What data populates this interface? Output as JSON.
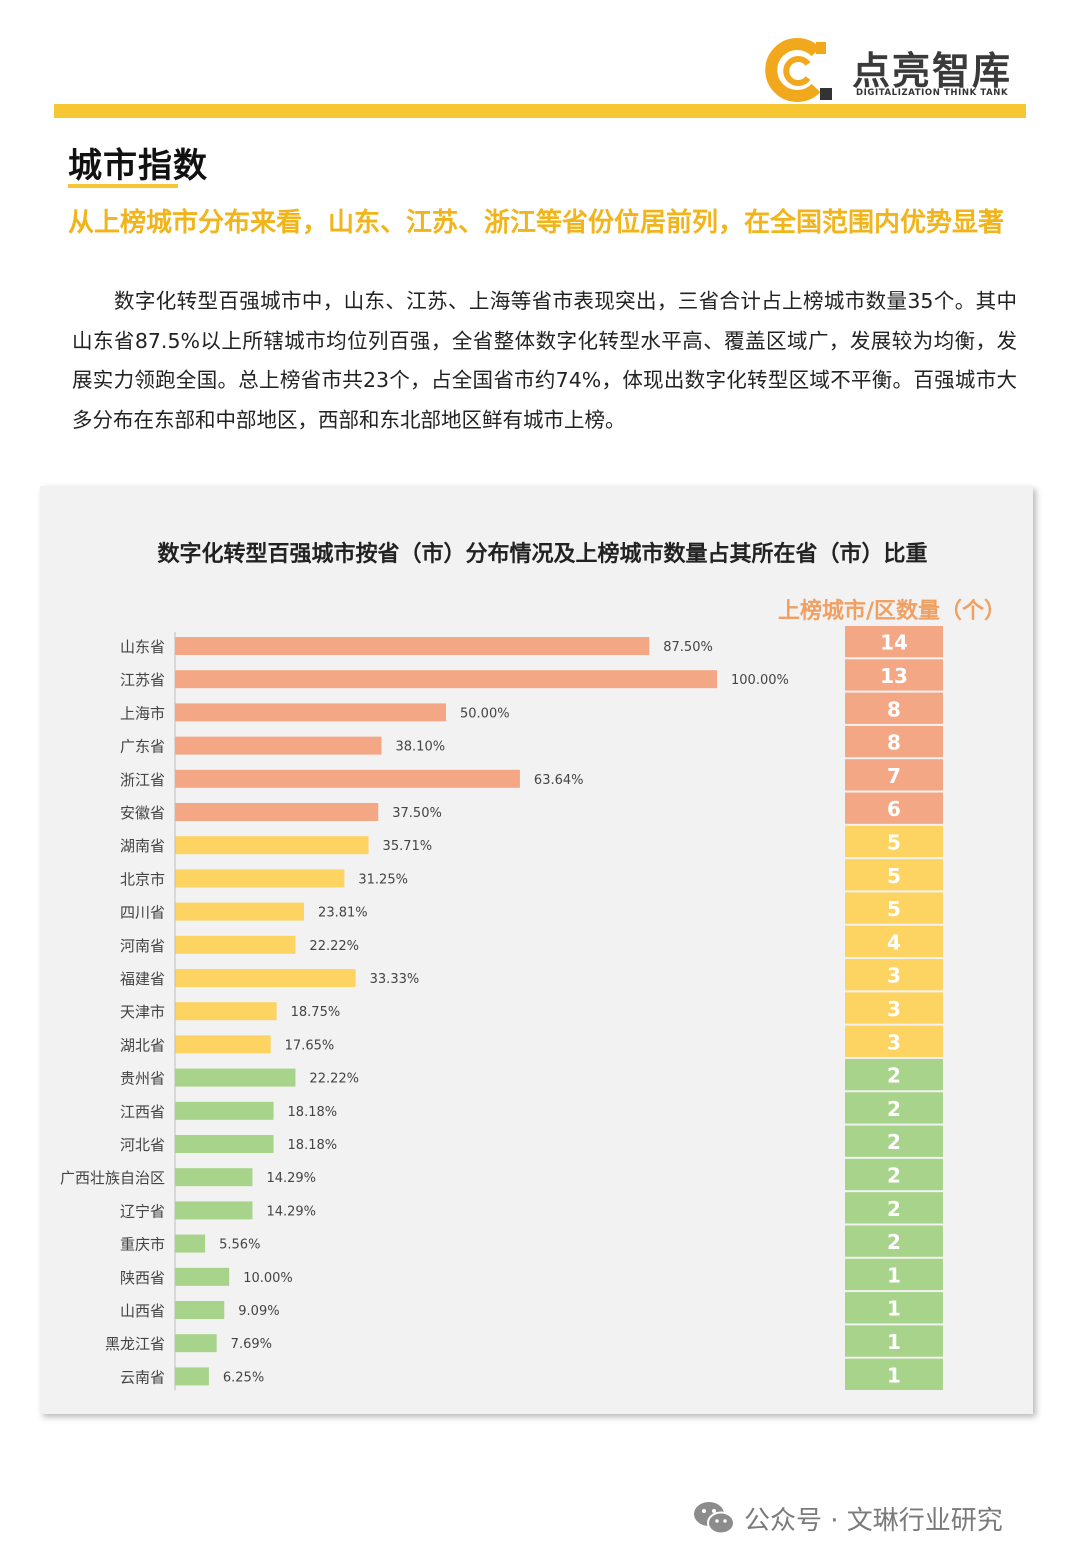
{
  "header": {
    "brand_name": "点亮智库",
    "brand_sub": "DIGITALIZATION THINK TANK"
  },
  "section": {
    "title": "城市指数",
    "subheading": "从上榜城市分布来看，山东、江苏、浙江等省份位居前列，在全国范围内优势显著",
    "body": "数字化转型百强城市中，山东、江苏、上海等省市表现突出，三省合计占上榜城市数量35个。其中山东省87.5%以上所辖城市均位列百强，全省整体数字化转型水平高、覆盖区域广，发展较为均衡，发展实力领跑全国。总上榜省市共23个，占全国省市约74%，体现出数字化转型区域不平衡。百强城市大多分布在东部和中部地区，西部和东北部地区鲜有城市上榜。"
  },
  "chart_data": {
    "type": "bar",
    "orientation": "horizontal",
    "title": "数字化转型百强城市按省（市）分布情况及上榜城市数量占其所在省（市）比重",
    "count_header": "上榜城市/区数量（个）",
    "xlim": [
      0,
      100
    ],
    "categories": [
      "山东省",
      "江苏省",
      "上海市",
      "广东省",
      "浙江省",
      "安徽省",
      "湖南省",
      "北京市",
      "四川省",
      "河南省",
      "福建省",
      "天津市",
      "湖北省",
      "贵州省",
      "江西省",
      "河北省",
      "广西壮族自治区",
      "辽宁省",
      "重庆市",
      "陕西省",
      "山西省",
      "黑龙江省",
      "云南省"
    ],
    "values": [
      87.5,
      100.0,
      50.0,
      38.1,
      63.64,
      37.5,
      35.71,
      31.25,
      23.81,
      22.22,
      33.33,
      18.75,
      17.65,
      22.22,
      18.18,
      18.18,
      14.29,
      14.29,
      5.56,
      10.0,
      9.09,
      7.69,
      6.25
    ],
    "value_labels": [
      "87.50%",
      "100.00%",
      "50.00%",
      "38.10%",
      "63.64%",
      "37.50%",
      "35.71%",
      "31.25%",
      "23.81%",
      "22.22%",
      "33.33%",
      "18.75%",
      "17.65%",
      "22.22%",
      "18.18%",
      "18.18%",
      "14.29%",
      "14.29%",
      "5.56%",
      "10.00%",
      "9.09%",
      "7.69%",
      "6.25%"
    ],
    "counts": [
      14,
      13,
      8,
      8,
      7,
      6,
      5,
      5,
      5,
      4,
      3,
      3,
      3,
      2,
      2,
      2,
      2,
      2,
      2,
      1,
      1,
      1,
      1
    ],
    "groups": [
      0,
      0,
      0,
      0,
      0,
      0,
      1,
      1,
      1,
      1,
      1,
      1,
      1,
      2,
      2,
      2,
      2,
      2,
      2,
      2,
      2,
      2,
      2
    ],
    "group_colors": [
      "#f4a784",
      "#fdd362",
      "#a8d38a"
    ]
  },
  "footer": {
    "text": "公众号 · 文琳行业研究"
  }
}
